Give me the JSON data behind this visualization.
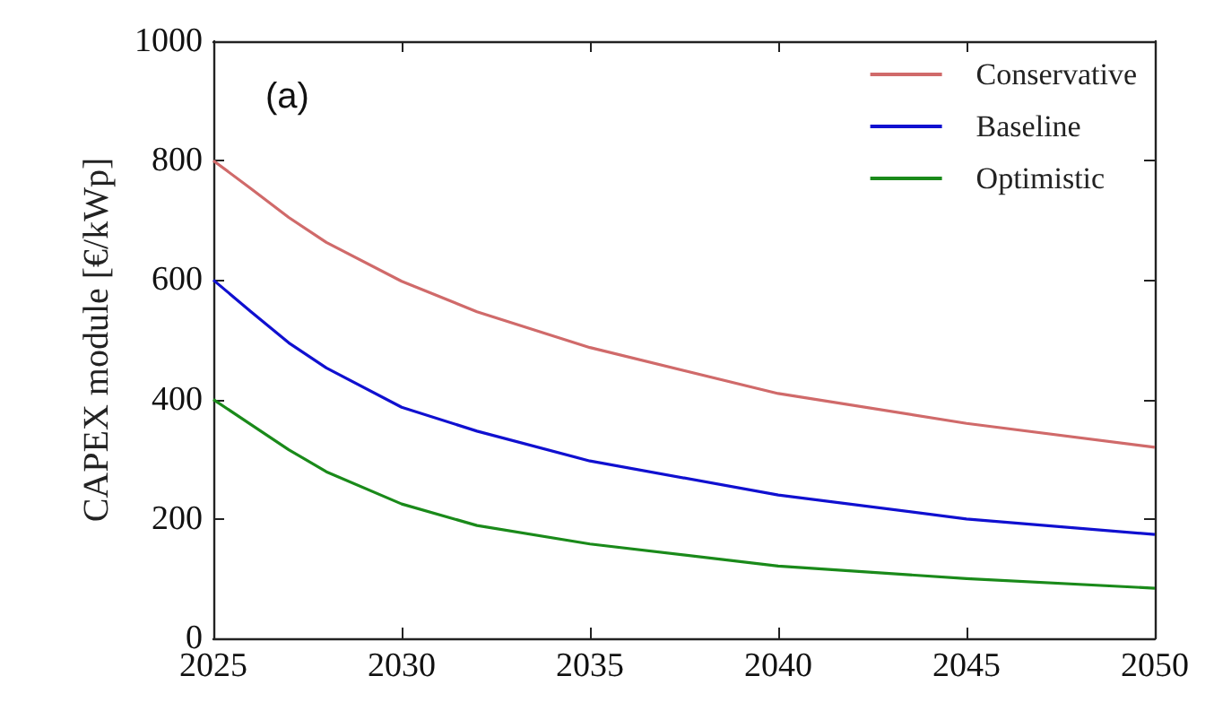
{
  "chart_data": {
    "type": "line",
    "ylabel": "CAPEX module [€/kWp]",
    "annotations": [
      "(a)"
    ],
    "x": [
      2025,
      2026,
      2027,
      2028,
      2030,
      2032,
      2035,
      2040,
      2045,
      2050
    ],
    "series": [
      {
        "name": "Conservative",
        "color": "#d06a6a",
        "values": [
          800,
          753,
          705,
          663,
          598,
          547,
          487,
          410,
          360,
          320
        ]
      },
      {
        "name": "Baseline",
        "color": "#1010d0",
        "values": [
          600,
          547,
          495,
          453,
          387,
          347,
          297,
          240,
          200,
          174
        ]
      },
      {
        "name": "Optimistic",
        "color": "#1a8a1a",
        "values": [
          400,
          358,
          316,
          279,
          225,
          189,
          158,
          121,
          100,
          84
        ]
      }
    ],
    "xlim": [
      2025,
      2050
    ],
    "xticks": [
      2025,
      2030,
      2035,
      2040,
      2045,
      2050
    ],
    "ylim": [
      0,
      1000
    ],
    "yticks": [
      0,
      200,
      400,
      600,
      800,
      1000
    ],
    "grid": false,
    "legend": "top right",
    "marker": "none",
    "line_style": "solid"
  }
}
